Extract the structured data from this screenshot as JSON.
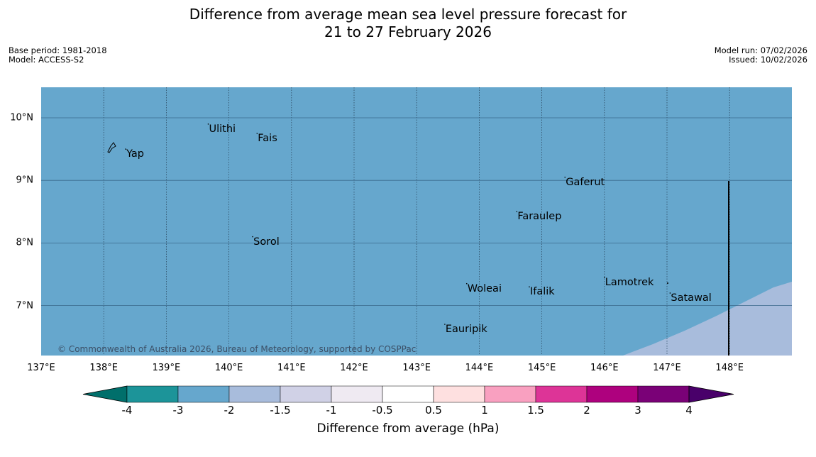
{
  "title": {
    "line1": "Difference from average mean sea level pressure forecast for",
    "line2": "21 to 27 February 2026"
  },
  "meta": {
    "base_period": "Base period: 1981-2018",
    "model": "Model: ACCESS-S2",
    "model_run": "Model run: 07/02/2026",
    "issued": "Issued: 10/02/2026"
  },
  "map": {
    "lon_range": [
      137,
      149
    ],
    "lat_range": [
      6.25,
      10.5
    ],
    "x_ticks": [
      "137°E",
      "138°E",
      "139°E",
      "140°E",
      "141°E",
      "142°E",
      "143°E",
      "144°E",
      "145°E",
      "146°E",
      "147°E",
      "148°E"
    ],
    "y_ticks": [
      "10°N",
      "9°N",
      "8°N",
      "7°N"
    ],
    "background_class_color": "#66a7cd",
    "secondary_class_color": "#a8bcdc",
    "places": [
      {
        "name": "Yap",
        "lon": 138.35,
        "lat": 9.5
      },
      {
        "name": "Ulithi",
        "lon": 139.67,
        "lat": 9.9
      },
      {
        "name": "Fais",
        "lon": 140.45,
        "lat": 9.75
      },
      {
        "name": "Sorol",
        "lon": 140.38,
        "lat": 8.1
      },
      {
        "name": "Gaferut",
        "lon": 145.37,
        "lat": 9.05
      },
      {
        "name": "Faraulep",
        "lon": 144.6,
        "lat": 8.5
      },
      {
        "name": "Woleai",
        "lon": 143.8,
        "lat": 7.35
      },
      {
        "name": "Ifalik",
        "lon": 144.8,
        "lat": 7.3
      },
      {
        "name": "Lamotrek",
        "lon": 146.0,
        "lat": 7.45
      },
      {
        "name": "Satawal",
        "lon": 147.05,
        "lat": 7.2
      },
      {
        "name": "Eauripik",
        "lon": 143.45,
        "lat": 6.7
      }
    ],
    "copyright": "© Commonwealth of Australia 2026, Bureau of Meteorology, supported by COSPPac"
  },
  "colorbar": {
    "title": "Difference from average (hPa)",
    "labels": [
      "-4",
      "-3",
      "-2",
      "-1.5",
      "-1",
      "-0.5",
      "0.5",
      "1",
      "1.5",
      "2",
      "3",
      "4"
    ],
    "colors": [
      "#006f6b",
      "#1c9499",
      "#66a7cd",
      "#a8bcdc",
      "#d0d1e6",
      "#efeaf2",
      "#ffffff",
      "#fee0e0",
      "#f9a0c0",
      "#dd3497",
      "#ae017e",
      "#7a0177",
      "#49006a"
    ]
  }
}
